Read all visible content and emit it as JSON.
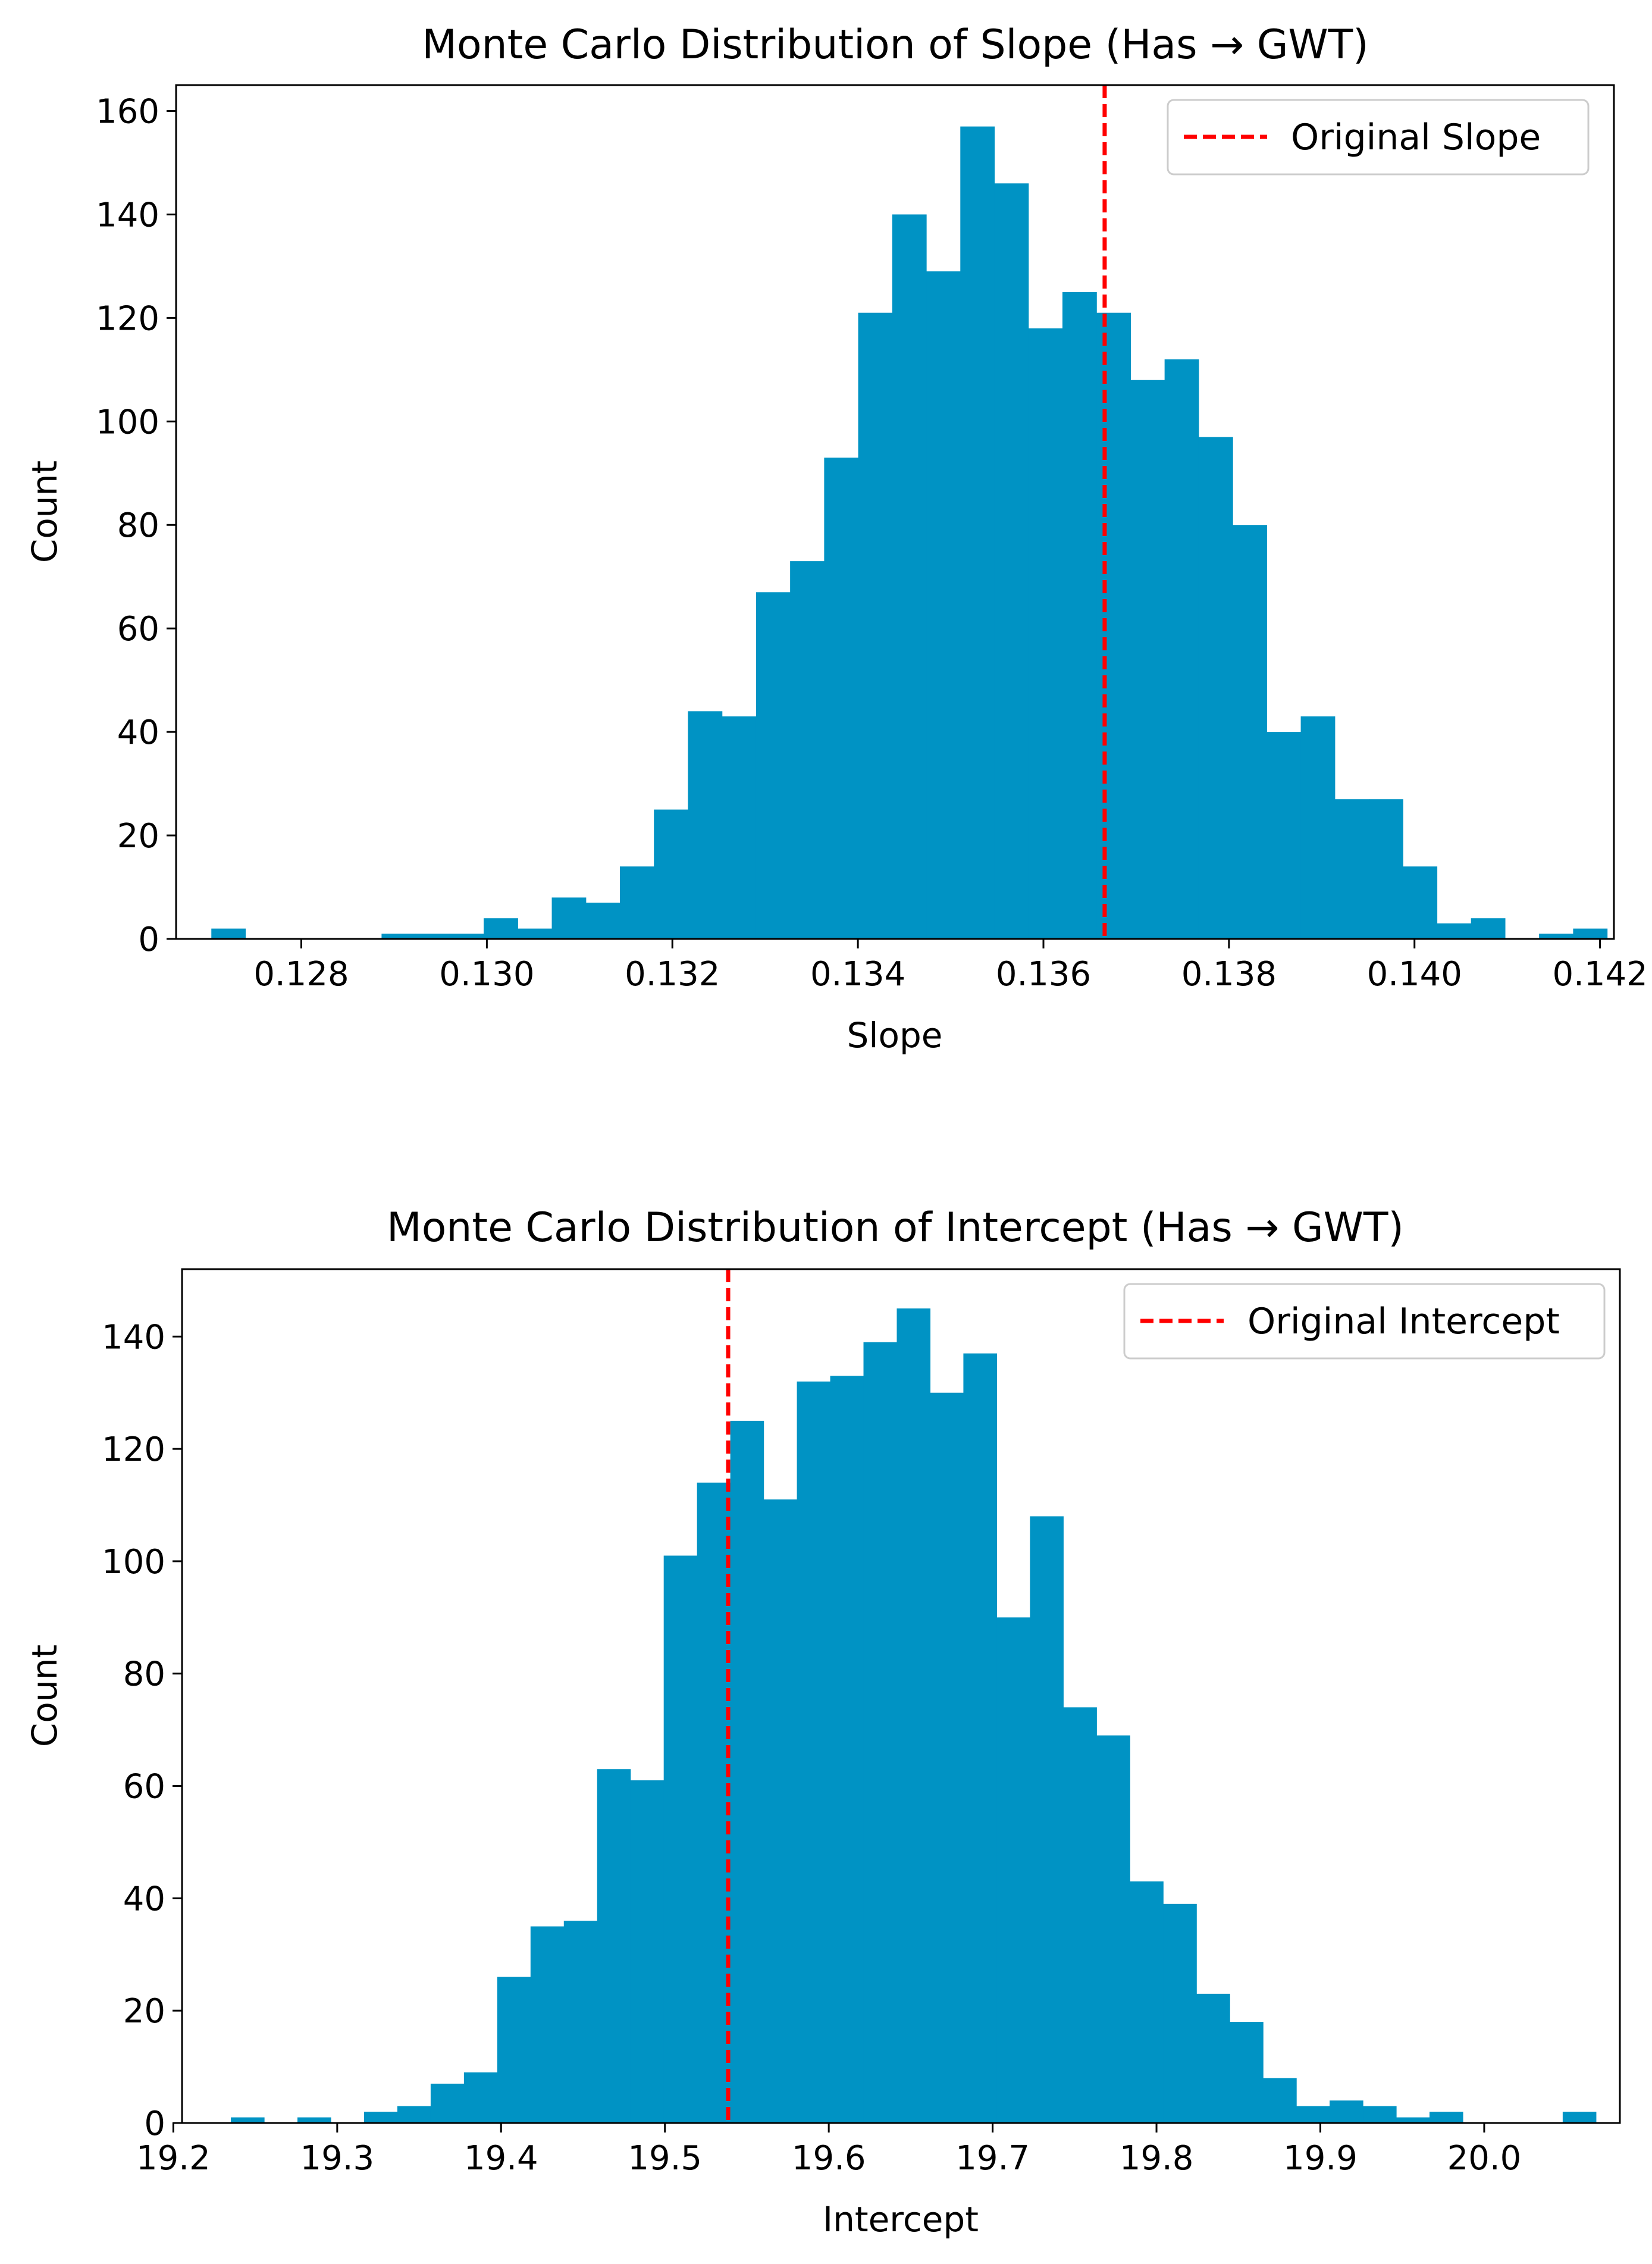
{
  "colors": {
    "bar": "#0093c4",
    "ref_line": "#ff0000",
    "axis": "#000000"
  },
  "chart_data": [
    {
      "type": "bar",
      "title": "Monte Carlo Distribution of Slope (Has → GWT)",
      "xlabel": "Slope",
      "ylabel": "Count",
      "xlim": [
        0.12665,
        0.14215
      ],
      "ylim": [
        0,
        165
      ],
      "xticks": [
        0.128,
        0.13,
        0.132,
        0.134,
        0.136,
        0.138,
        0.14,
        0.142
      ],
      "xtick_labels": [
        "0.128",
        "0.130",
        "0.132",
        "0.134",
        "0.136",
        "0.138",
        "0.140",
        "0.142"
      ],
      "yticks": [
        0,
        20,
        40,
        60,
        80,
        100,
        120,
        140,
        160
      ],
      "ytick_labels": [
        "0",
        "20",
        "40",
        "60",
        "80",
        "100",
        "120",
        "140",
        "160"
      ],
      "bin_start": 0.12703,
      "bin_width": 0.000367,
      "values": [
        2,
        0,
        0,
        0,
        0,
        1,
        1,
        1,
        4,
        2,
        8,
        7,
        14,
        25,
        44,
        43,
        67,
        73,
        93,
        121,
        140,
        129,
        157,
        146,
        118,
        125,
        121,
        108,
        112,
        97,
        80,
        40,
        43,
        27,
        27,
        14,
        3,
        4,
        0,
        1,
        2
      ],
      "reference_line": {
        "value": 0.13666,
        "label": "Original Slope"
      },
      "legend_position": "top-right"
    },
    {
      "type": "bar",
      "title": "Monte Carlo Distribution of Intercept (Has → GWT)",
      "xlabel": "Intercept",
      "ylabel": "Count",
      "xlim": [
        19.2053,
        20.0828
      ],
      "ylim": [
        0,
        152
      ],
      "xticks": [
        19.2,
        19.3,
        19.4,
        19.5,
        19.6,
        19.7,
        19.8,
        19.9,
        20.0
      ],
      "xtick_labels": [
        "19.2",
        "19.3",
        "19.4",
        "19.5",
        "19.6",
        "19.7",
        "19.8",
        "19.9",
        "20.0"
      ],
      "yticks": [
        0,
        20,
        40,
        60,
        80,
        100,
        120,
        140
      ],
      "ytick_labels": [
        "0",
        "20",
        "40",
        "60",
        "80",
        "100",
        "120",
        "140"
      ],
      "bin_start": 19.2351,
      "bin_width": 0.02032,
      "values": [
        1,
        0,
        1,
        0,
        2,
        3,
        7,
        9,
        26,
        35,
        36,
        63,
        61,
        101,
        114,
        125,
        111,
        132,
        133,
        139,
        145,
        130,
        137,
        90,
        108,
        74,
        69,
        43,
        39,
        23,
        18,
        8,
        3,
        4,
        3,
        1,
        2,
        0,
        0,
        0,
        2
      ],
      "reference_line": {
        "value": 19.5386,
        "label": "Original Intercept"
      },
      "legend_position": "top-right"
    }
  ]
}
